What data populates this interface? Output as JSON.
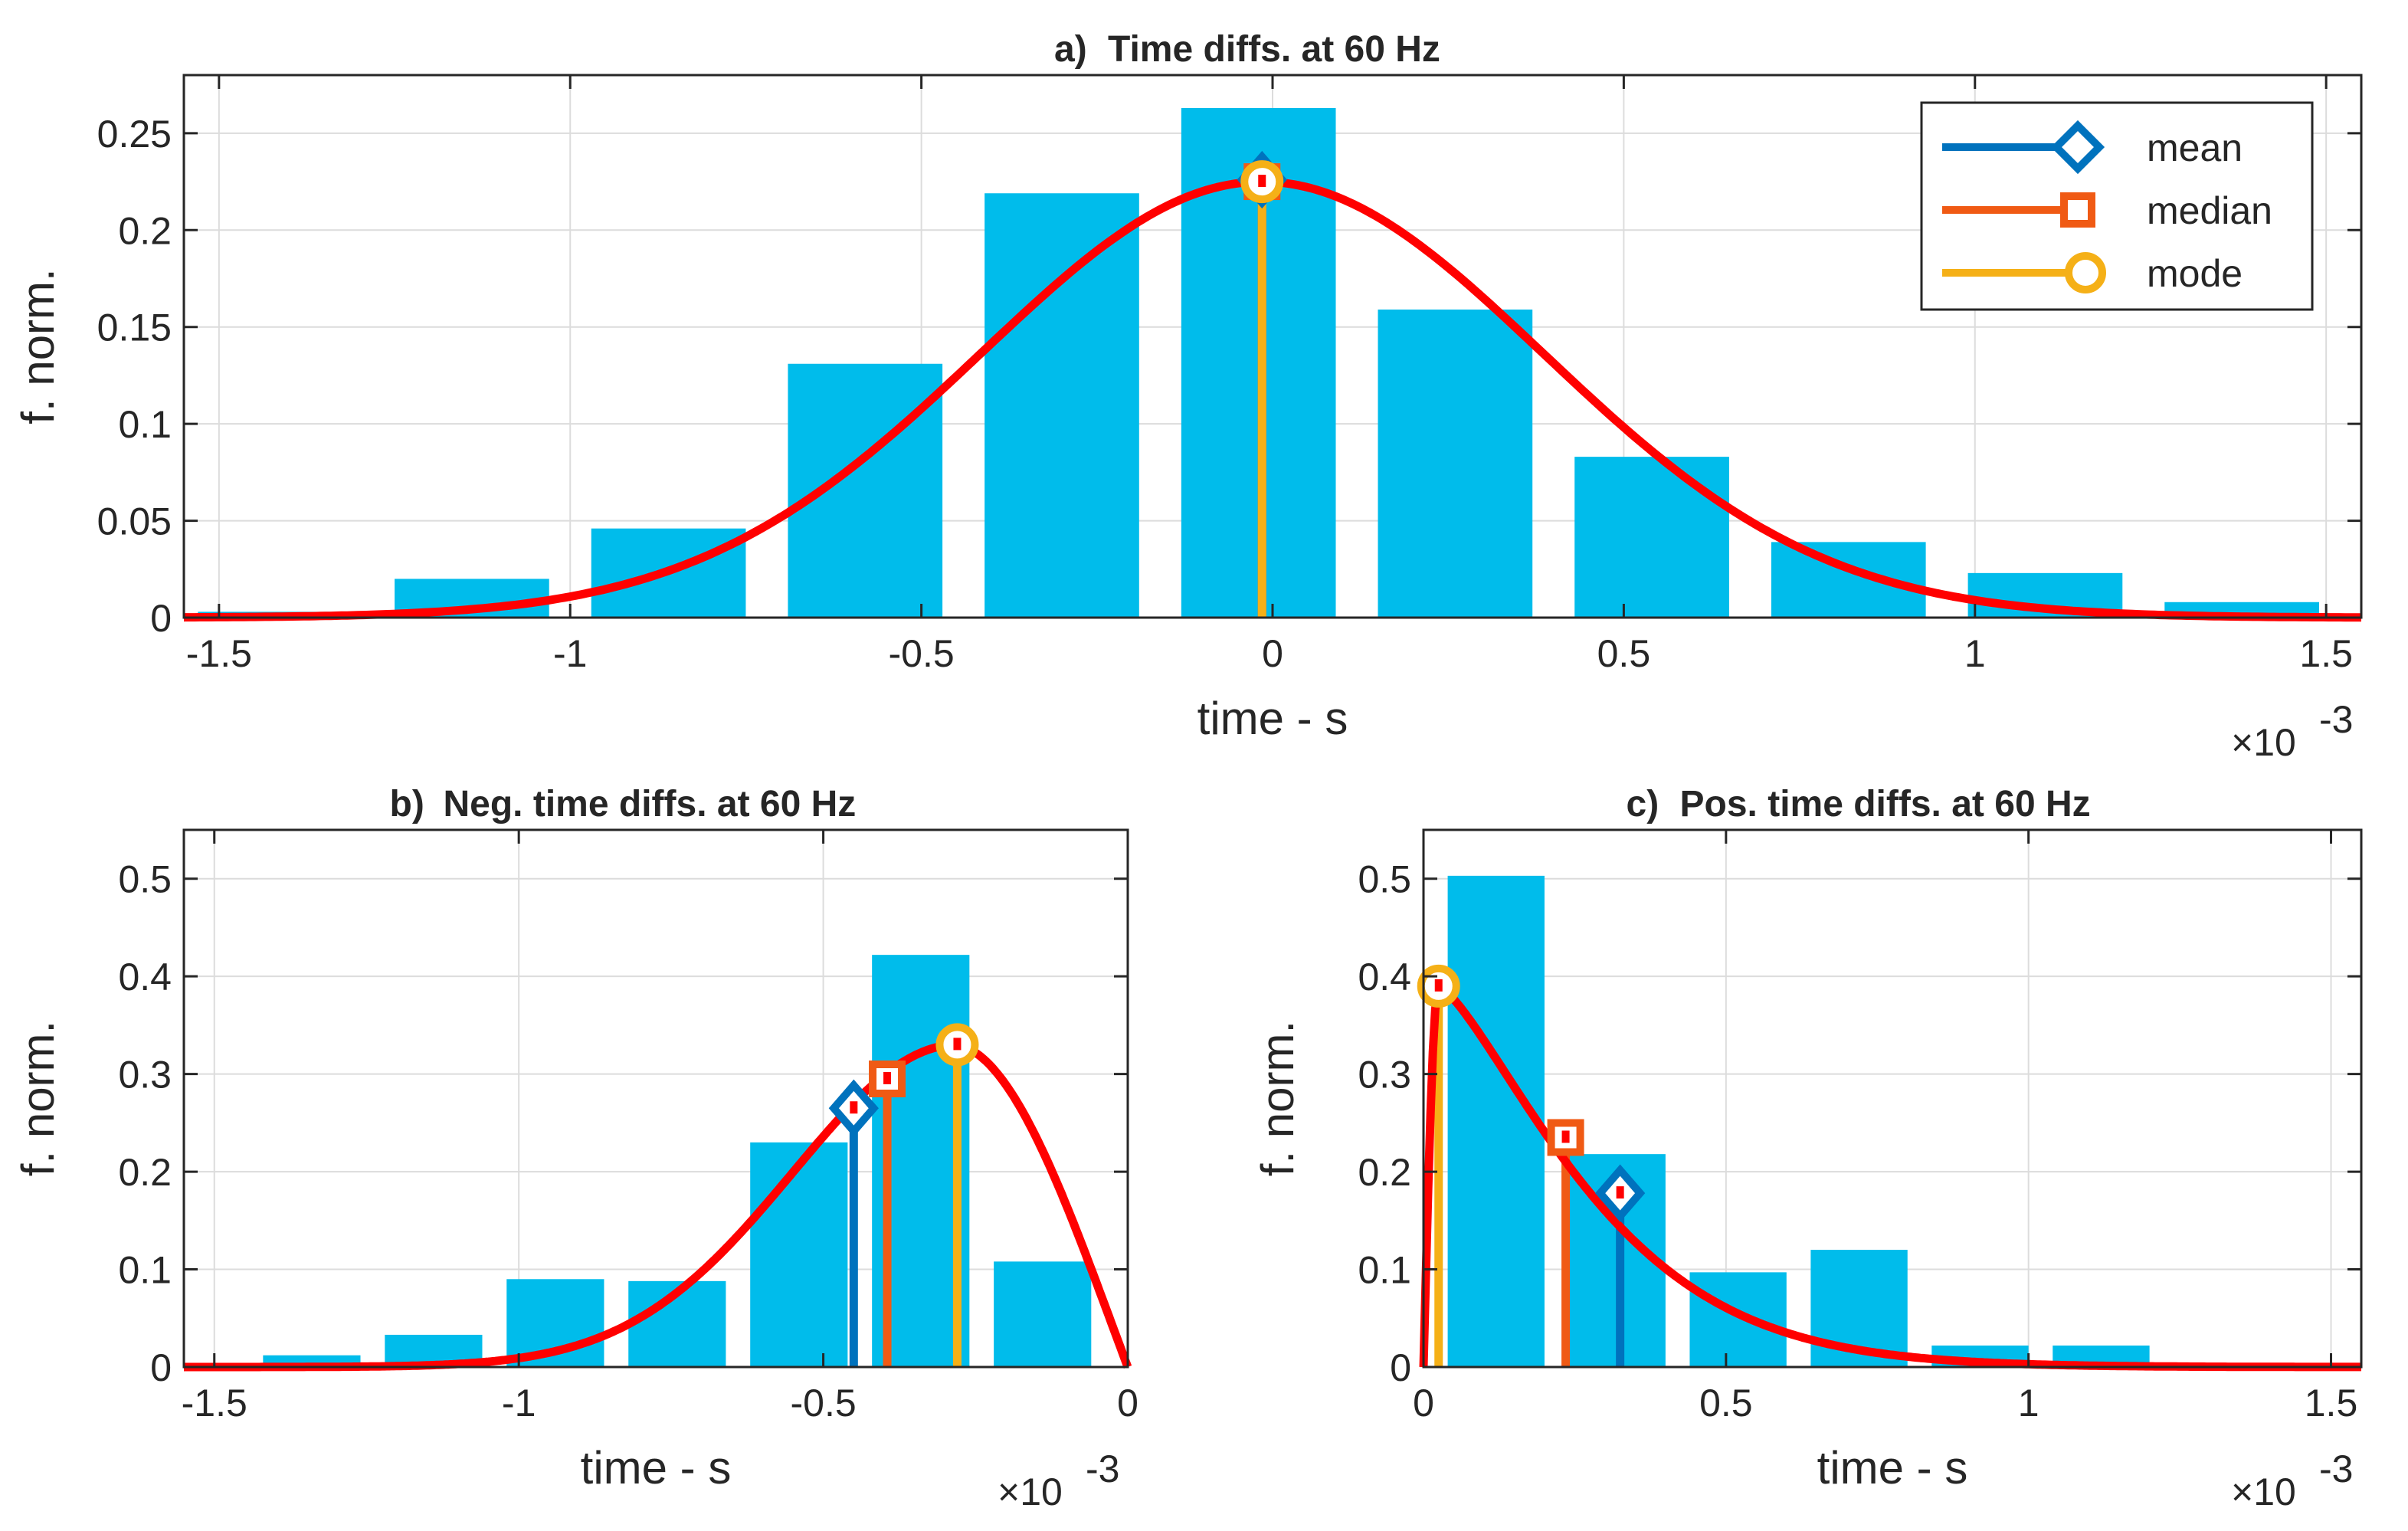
{
  "colors": {
    "bar": "#00BCEB",
    "fit": "#FF0000",
    "mean": "#0072BD",
    "median": "#F05A14",
    "mode": "#F5B017",
    "grid": "#DCDCDC",
    "axis": "#262626"
  },
  "legend": {
    "items": [
      {
        "key": "mean",
        "label": "mean",
        "marker": "diamond-icon"
      },
      {
        "key": "median",
        "label": "median",
        "marker": "square-icon"
      },
      {
        "key": "mode",
        "label": "mode",
        "marker": "circle-icon"
      }
    ]
  },
  "chart_data": [
    {
      "id": "a",
      "type": "bar",
      "title_prefix": "a)",
      "title": "Time diffs. at 60 Hz",
      "xlabel": "time - s",
      "ylabel": "f. norm.",
      "x_exponent": "×10",
      "x_exponent_power": "-3",
      "xlim": [
        -1.55,
        1.55
      ],
      "ylim": [
        0,
        0.28
      ],
      "xticks": [
        -1.5,
        -1,
        -0.5,
        0,
        0.5,
        1,
        1.5
      ],
      "xtick_labels": [
        "-1.5",
        "-1",
        "-0.5",
        "0",
        "0.5",
        "1",
        "1.5"
      ],
      "yticks": [
        0,
        0.05,
        0.1,
        0.15,
        0.2,
        0.25
      ],
      "ytick_labels": [
        "0",
        "0.05",
        "0.1",
        "0.15",
        "0.2",
        "0.25"
      ],
      "grid": true,
      "legend_position": "top-right",
      "bar_width": 0.22,
      "bars": {
        "x": [
          -1.42,
          -1.14,
          -0.86,
          -0.58,
          -0.3,
          -0.02,
          0.26,
          0.54,
          0.82,
          1.1,
          1.38
        ],
        "values": [
          0.003,
          0.02,
          0.046,
          0.131,
          0.219,
          0.263,
          0.159,
          0.083,
          0.039,
          0.023,
          0.008
        ]
      },
      "fit": {
        "kind": "gaussian",
        "peak": 0.225,
        "center": -0.015,
        "sigma": 0.4
      },
      "stats": {
        "mean": {
          "x": -0.015,
          "y": 0.226
        },
        "median": {
          "x": -0.015,
          "y": 0.225
        },
        "mode": {
          "x": -0.015,
          "y": 0.225
        }
      }
    },
    {
      "id": "b",
      "type": "bar",
      "title_prefix": "b)",
      "title": "Neg. time diffs. at 60 Hz",
      "xlabel": "time - s",
      "ylabel": "f. norm.",
      "x_exponent": "×10",
      "x_exponent_power": "-3",
      "xlim": [
        -1.55,
        0
      ],
      "ylim": [
        0,
        0.55
      ],
      "xticks": [
        -1.5,
        -1,
        -0.5,
        0
      ],
      "xtick_labels": [
        "-1.5",
        "-1",
        "-0.5",
        "0"
      ],
      "yticks": [
        0,
        0.1,
        0.2,
        0.3,
        0.4,
        0.5
      ],
      "ytick_labels": [
        "0",
        "0.1",
        "0.2",
        "0.3",
        "0.4",
        "0.5"
      ],
      "grid": true,
      "bar_width": 0.16,
      "bars": {
        "x": [
          -1.34,
          -1.14,
          -0.94,
          -0.74,
          -0.54,
          -0.34,
          -0.14
        ],
        "values": [
          0.012,
          0.033,
          0.09,
          0.088,
          0.23,
          0.422,
          0.108
        ]
      },
      "fit": {
        "kind": "skewed",
        "peak": 0.33,
        "mode": -0.28,
        "left_scale": 0.34,
        "right_end": 0
      },
      "stats": {
        "mean": {
          "x": -0.45,
          "y": 0.265
        },
        "median": {
          "x": -0.395,
          "y": 0.295
        },
        "mode": {
          "x": -0.28,
          "y": 0.33
        }
      }
    },
    {
      "id": "c",
      "type": "bar",
      "title_prefix": "c)",
      "title": "Pos. time diffs. at 60 Hz",
      "xlabel": "time - s",
      "ylabel": "f. norm.",
      "x_exponent": "×10",
      "x_exponent_power": "-3",
      "xlim": [
        0,
        1.55
      ],
      "ylim": [
        0,
        0.55
      ],
      "xticks": [
        0,
        0.5,
        1,
        1.5
      ],
      "xtick_labels": [
        "0",
        "0.5",
        "1",
        "1.5"
      ],
      "yticks": [
        0,
        0.1,
        0.2,
        0.3,
        0.4,
        0.5
      ],
      "ytick_labels": [
        "0",
        "0.1",
        "0.2",
        "0.3",
        "0.4",
        "0.5"
      ],
      "grid": true,
      "bar_width": 0.16,
      "bars": {
        "x": [
          0.12,
          0.32,
          0.52,
          0.72,
          0.92,
          1.12
        ],
        "values": [
          0.503,
          0.218,
          0.097,
          0.12,
          0.022,
          0.022
        ]
      },
      "fit": {
        "kind": "right-skewed",
        "peak": 0.39,
        "mode": 0.025,
        "decay": 0.3
      },
      "stats": {
        "mean": {
          "x": 0.325,
          "y": 0.178
        },
        "median": {
          "x": 0.235,
          "y": 0.235
        },
        "mode": {
          "x": 0.025,
          "y": 0.39
        }
      }
    }
  ]
}
